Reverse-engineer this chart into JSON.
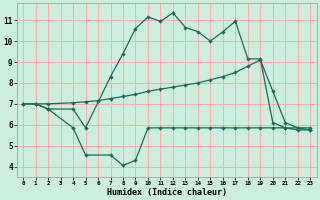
{
  "xlabel": "Humidex (Indice chaleur)",
  "bg_color": "#cceedd",
  "grid_color": "#ffaaaa",
  "line_color": "#1a6b5a",
  "xlim": [
    -0.5,
    23.5
  ],
  "ylim": [
    3.5,
    11.8
  ],
  "xticks": [
    0,
    1,
    2,
    3,
    4,
    5,
    6,
    7,
    8,
    9,
    10,
    11,
    12,
    13,
    14,
    15,
    16,
    17,
    18,
    19,
    20,
    21,
    22,
    23
  ],
  "yticks": [
    4,
    5,
    6,
    7,
    8,
    9,
    10,
    11
  ],
  "line_max_x": [
    0,
    1,
    2,
    4,
    5,
    7,
    8,
    9,
    10,
    11,
    12,
    13,
    14,
    15,
    16,
    17,
    18,
    19,
    20,
    21,
    22,
    23
  ],
  "line_max_y": [
    7.0,
    7.0,
    6.75,
    6.75,
    5.85,
    8.3,
    9.4,
    10.6,
    11.15,
    10.95,
    11.35,
    10.65,
    10.45,
    10.0,
    10.45,
    10.95,
    9.15,
    9.15,
    6.1,
    5.85,
    5.75,
    5.75
  ],
  "line_avg_x": [
    0,
    1,
    2,
    4,
    5,
    6,
    7,
    8,
    9,
    10,
    11,
    12,
    13,
    14,
    15,
    16,
    17,
    18,
    19,
    20,
    21,
    22,
    23
  ],
  "line_avg_y": [
    7.0,
    7.0,
    7.0,
    7.05,
    7.1,
    7.15,
    7.25,
    7.35,
    7.45,
    7.6,
    7.7,
    7.8,
    7.9,
    8.0,
    8.15,
    8.3,
    8.5,
    8.8,
    9.1,
    7.6,
    6.1,
    5.85,
    5.75
  ],
  "line_min_x": [
    0,
    1,
    2,
    4,
    5,
    7,
    8,
    9,
    10,
    11,
    12,
    13,
    14,
    15,
    16,
    17,
    18,
    19,
    20,
    21,
    22,
    23
  ],
  "line_min_y": [
    7.0,
    7.0,
    6.75,
    5.85,
    4.55,
    4.55,
    4.05,
    4.3,
    5.85,
    5.85,
    5.85,
    5.85,
    5.85,
    5.85,
    5.85,
    5.85,
    5.85,
    5.85,
    5.85,
    5.85,
    5.85,
    5.85
  ]
}
